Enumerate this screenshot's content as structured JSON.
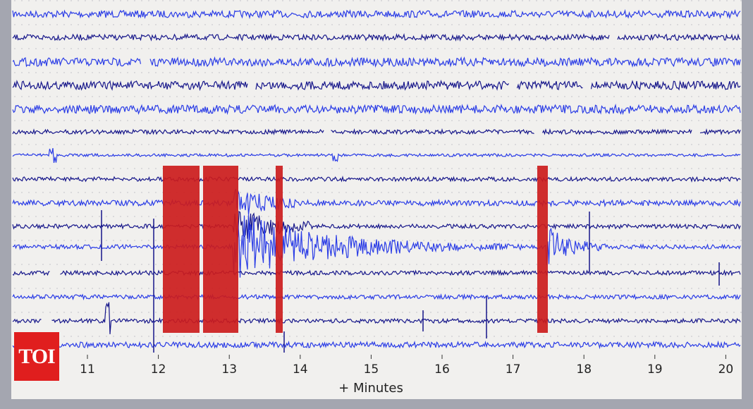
{
  "x_axis": {
    "ticks": [
      "11",
      "12",
      "13",
      "14",
      "15",
      "16",
      "17",
      "18",
      "19",
      "20"
    ],
    "label": "+ Minutes"
  },
  "logo": "TOI"
}
